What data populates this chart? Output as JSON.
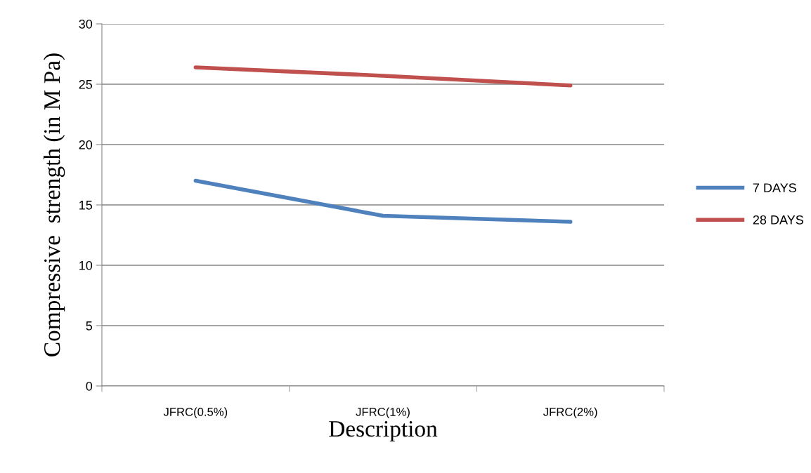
{
  "chart_data": {
    "type": "line",
    "xlabel": "Description",
    "ylabel": "Compressive  strength (in M Pa)",
    "categories": [
      "JFRC(0.5%)",
      "JFRC(1%)",
      "JFRC(2%)"
    ],
    "series": [
      {
        "name": "7 DAYS",
        "color": "#4f81bd",
        "values": [
          17.0,
          14.1,
          13.6
        ]
      },
      {
        "name": "28 DAYS",
        "color": "#c0504d",
        "values": [
          26.4,
          25.7,
          24.9
        ]
      }
    ],
    "ylim": [
      0,
      30
    ],
    "yticks": [
      0,
      5,
      10,
      15,
      20,
      25,
      30
    ],
    "grid": "y",
    "legend": "right",
    "marker": "none",
    "line_style": "solid"
  }
}
